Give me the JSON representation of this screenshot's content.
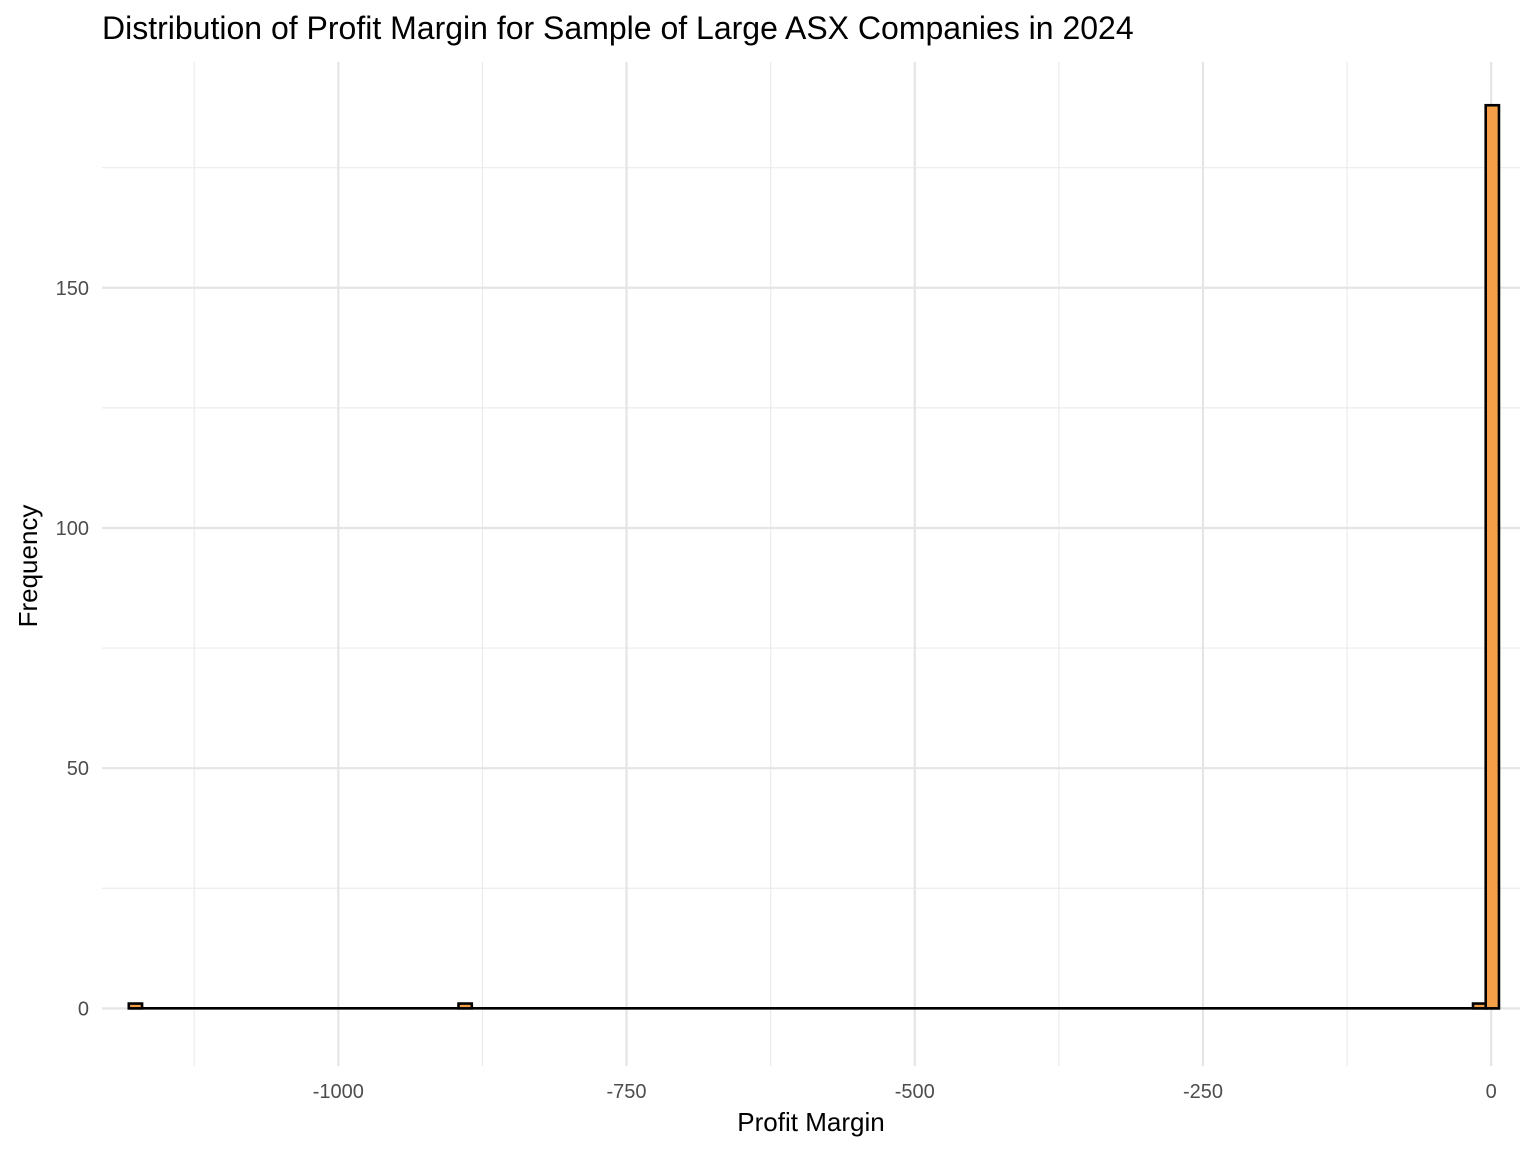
{
  "chart_data": {
    "type": "histogram",
    "title": "Distribution of Profit Margin for Sample of Large ASX Companies in 2024",
    "xlabel": "Profit Margin",
    "ylabel": "Frequency",
    "xlim": [
      -1205,
      25
    ],
    "ylim": [
      -12,
      197
    ],
    "x_ticks": [
      -1000,
      -750,
      -500,
      -250,
      0
    ],
    "x_tick_labels": [
      "-1000",
      "-750",
      "-500",
      "-250",
      "0"
    ],
    "y_ticks": [
      0,
      50,
      100,
      150
    ],
    "y_tick_labels": [
      "0",
      "50",
      "100",
      "150"
    ],
    "bin_width": 11.5,
    "bins": [
      {
        "x": -1176,
        "count": 1
      },
      {
        "x": -890,
        "count": 1
      },
      {
        "x": -10,
        "count": 1
      },
      {
        "x": 1,
        "count": 188
      }
    ],
    "bar_fill": "#F5A049",
    "bar_stroke": "#000000",
    "grid": true
  }
}
